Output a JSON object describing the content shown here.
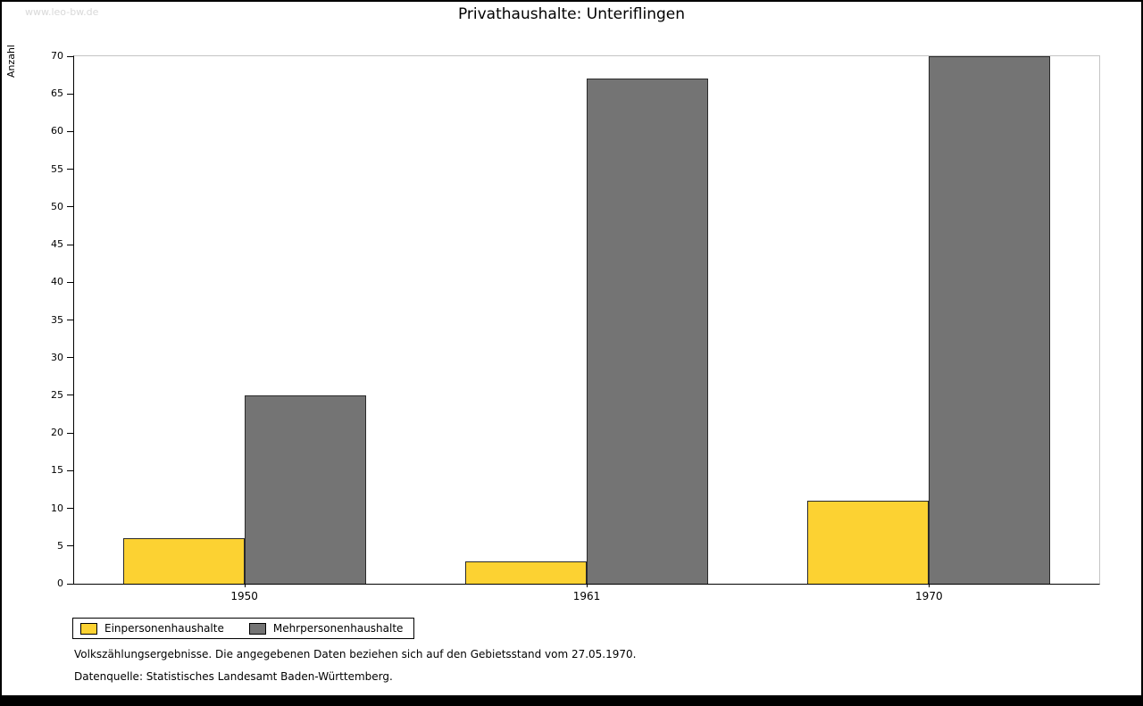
{
  "watermark": "www.leo-bw.de",
  "title": "Privathaushalte: Unteriflingen",
  "ylabel": "Anzahl",
  "chart_data": {
    "type": "bar",
    "title": "Privathaushalte: Unteriflingen",
    "xlabel": "",
    "ylabel": "Anzahl",
    "categories": [
      "1950",
      "1961",
      "1970"
    ],
    "series": [
      {
        "name": "Einpersonenhaushalte",
        "color": "#fcd232",
        "values": [
          6,
          3,
          11
        ]
      },
      {
        "name": "Mehrpersonenhaushalte",
        "color": "#747474",
        "values": [
          25,
          67,
          70
        ]
      }
    ],
    "ylim": [
      0,
      70
    ],
    "ytick_step": 5,
    "grid": false,
    "legend_position": "bottom-left"
  },
  "footnotes": [
    "Volkszählungsergebnisse. Die angegebenen Daten beziehen sich auf den Gebietsstand vom 27.05.1970.",
    "Datenquelle: Statistisches Landesamt Baden-Württemberg."
  ]
}
